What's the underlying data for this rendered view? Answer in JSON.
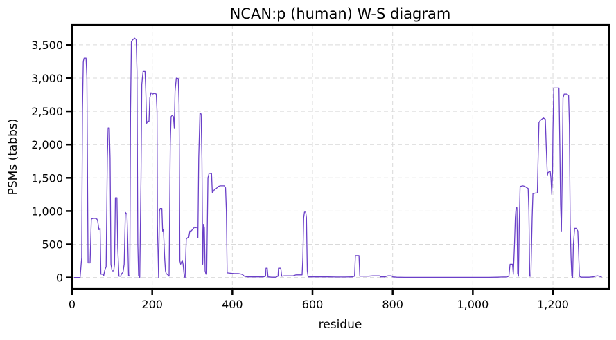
{
  "chart_data": {
    "type": "line",
    "title": "NCAN:p (human) W-S diagram",
    "xlabel": "residue",
    "ylabel": "PSMs (tabbs)",
    "xlim": [
      0,
      1340
    ],
    "ylim": [
      -170,
      3800
    ],
    "xticks": [
      0,
      200,
      400,
      600,
      800,
      1000,
      1200
    ],
    "xtick_labels": [
      "0",
      "200",
      "400",
      "600",
      "800",
      "1,000",
      "1,200"
    ],
    "yticks": [
      0,
      500,
      1000,
      1500,
      2000,
      2500,
      3000,
      3500
    ],
    "ytick_labels": [
      "0",
      "500",
      "1,000",
      "1,500",
      "2,000",
      "2,500",
      "3,000",
      "3,500"
    ],
    "grid": true,
    "series": [
      {
        "color": "#6a3fc8",
        "points": [
          [
            5,
            0
          ],
          [
            20,
            0
          ],
          [
            24,
            300
          ],
          [
            26,
            2500
          ],
          [
            28,
            3250
          ],
          [
            30,
            3300
          ],
          [
            35,
            3300
          ],
          [
            37,
            3000
          ],
          [
            40,
            220
          ],
          [
            45,
            220
          ],
          [
            48,
            880
          ],
          [
            52,
            890
          ],
          [
            58,
            890
          ],
          [
            62,
            880
          ],
          [
            64,
            850
          ],
          [
            67,
            720
          ],
          [
            70,
            740
          ],
          [
            72,
            50
          ],
          [
            76,
            50
          ],
          [
            79,
            30
          ],
          [
            82,
            120
          ],
          [
            85,
            160
          ],
          [
            88,
            1800
          ],
          [
            90,
            2250
          ],
          [
            93,
            2250
          ],
          [
            95,
            1800
          ],
          [
            97,
            200
          ],
          [
            100,
            100
          ],
          [
            104,
            100
          ],
          [
            106,
            200
          ],
          [
            108,
            1200
          ],
          [
            112,
            1200
          ],
          [
            114,
            450
          ],
          [
            117,
            20
          ],
          [
            121,
            20
          ],
          [
            124,
            60
          ],
          [
            127,
            80
          ],
          [
            130,
            200
          ],
          [
            133,
            980
          ],
          [
            137,
            950
          ],
          [
            139,
            550
          ],
          [
            141,
            30
          ],
          [
            144,
            20
          ],
          [
            146,
            2500
          ],
          [
            148,
            3550
          ],
          [
            152,
            3580
          ],
          [
            156,
            3600
          ],
          [
            160,
            3580
          ],
          [
            162,
            3100
          ],
          [
            164,
            500
          ],
          [
            166,
            30
          ],
          [
            169,
            0
          ],
          [
            172,
            1500
          ],
          [
            174,
            2900
          ],
          [
            177,
            3100
          ],
          [
            182,
            3100
          ],
          [
            184,
            2800
          ],
          [
            186,
            2320
          ],
          [
            189,
            2350
          ],
          [
            192,
            2350
          ],
          [
            194,
            2700
          ],
          [
            197,
            2780
          ],
          [
            201,
            2760
          ],
          [
            205,
            2770
          ],
          [
            210,
            2760
          ],
          [
            212,
            2500
          ],
          [
            213,
            800
          ],
          [
            215,
            300
          ],
          [
            216,
            0
          ],
          [
            218,
            1000
          ],
          [
            220,
            1040
          ],
          [
            224,
            1040
          ],
          [
            226,
            700
          ],
          [
            228,
            720
          ],
          [
            231,
            300
          ],
          [
            233,
            100
          ],
          [
            235,
            60
          ],
          [
            239,
            40
          ],
          [
            242,
            20
          ],
          [
            243,
            600
          ],
          [
            245,
            2000
          ],
          [
            247,
            2420
          ],
          [
            250,
            2440
          ],
          [
            253,
            2420
          ],
          [
            255,
            2250
          ],
          [
            257,
            2800
          ],
          [
            260,
            3000
          ],
          [
            265,
            2990
          ],
          [
            267,
            2600
          ],
          [
            269,
            250
          ],
          [
            271,
            200
          ],
          [
            275,
            260
          ],
          [
            277,
            200
          ],
          [
            280,
            20
          ],
          [
            282,
            0
          ],
          [
            285,
            580
          ],
          [
            288,
            600
          ],
          [
            291,
            600
          ],
          [
            294,
            700
          ],
          [
            297,
            700
          ],
          [
            300,
            720
          ],
          [
            303,
            740
          ],
          [
            306,
            760
          ],
          [
            309,
            750
          ],
          [
            312,
            760
          ],
          [
            314,
            600
          ],
          [
            316,
            1800
          ],
          [
            319,
            2470
          ],
          [
            322,
            2460
          ],
          [
            324,
            1800
          ],
          [
            326,
            200
          ],
          [
            328,
            800
          ],
          [
            330,
            750
          ],
          [
            332,
            100
          ],
          [
            334,
            50
          ],
          [
            336,
            50
          ],
          [
            339,
            1500
          ],
          [
            342,
            1570
          ],
          [
            348,
            1560
          ],
          [
            350,
            1280
          ],
          [
            353,
            1300
          ],
          [
            356,
            1330
          ],
          [
            360,
            1340
          ],
          [
            365,
            1370
          ],
          [
            370,
            1380
          ],
          [
            380,
            1380
          ],
          [
            383,
            1350
          ],
          [
            385,
            1000
          ],
          [
            387,
            70
          ],
          [
            395,
            65
          ],
          [
            405,
            60
          ],
          [
            415,
            60
          ],
          [
            420,
            55
          ],
          [
            425,
            45
          ],
          [
            430,
            20
          ],
          [
            438,
            10
          ],
          [
            448,
            10
          ],
          [
            458,
            10
          ],
          [
            468,
            10
          ],
          [
            478,
            10
          ],
          [
            483,
            20
          ],
          [
            484,
            140
          ],
          [
            487,
            140
          ],
          [
            489,
            10
          ],
          [
            498,
            5
          ],
          [
            508,
            5
          ],
          [
            514,
            20
          ],
          [
            515,
            140
          ],
          [
            518,
            140
          ],
          [
            521,
            140
          ],
          [
            523,
            20
          ],
          [
            530,
            25
          ],
          [
            541,
            25
          ],
          [
            551,
            25
          ],
          [
            559,
            40
          ],
          [
            566,
            40
          ],
          [
            574,
            40
          ],
          [
            576,
            300
          ],
          [
            578,
            900
          ],
          [
            580,
            985
          ],
          [
            583,
            985
          ],
          [
            585,
            900
          ],
          [
            587,
            100
          ],
          [
            589,
            10
          ],
          [
            600,
            10
          ],
          [
            620,
            10
          ],
          [
            640,
            10
          ],
          [
            660,
            8
          ],
          [
            680,
            8
          ],
          [
            700,
            10
          ],
          [
            705,
            20
          ],
          [
            707,
            330
          ],
          [
            712,
            330
          ],
          [
            716,
            330
          ],
          [
            718,
            20
          ],
          [
            725,
            20
          ],
          [
            740,
            20
          ],
          [
            750,
            25
          ],
          [
            756,
            25
          ],
          [
            767,
            25
          ],
          [
            770,
            10
          ],
          [
            780,
            10
          ],
          [
            788,
            25
          ],
          [
            797,
            25
          ],
          [
            800,
            10
          ],
          [
            810,
            5
          ],
          [
            830,
            3
          ],
          [
            860,
            3
          ],
          [
            890,
            3
          ],
          [
            920,
            3
          ],
          [
            950,
            3
          ],
          [
            980,
            3
          ],
          [
            1010,
            3
          ],
          [
            1040,
            3
          ],
          [
            1060,
            5
          ],
          [
            1075,
            8
          ],
          [
            1085,
            8
          ],
          [
            1090,
            20
          ],
          [
            1093,
            200
          ],
          [
            1096,
            200
          ],
          [
            1099,
            200
          ],
          [
            1101,
            50
          ],
          [
            1104,
            500
          ],
          [
            1106,
            900
          ],
          [
            1108,
            1050
          ],
          [
            1110,
            1050
          ],
          [
            1112,
            60
          ],
          [
            1114,
            20
          ],
          [
            1116,
            800
          ],
          [
            1118,
            1370
          ],
          [
            1125,
            1380
          ],
          [
            1130,
            1370
          ],
          [
            1135,
            1350
          ],
          [
            1138,
            1340
          ],
          [
            1140,
            1000
          ],
          [
            1142,
            20
          ],
          [
            1145,
            20
          ],
          [
            1148,
            900
          ],
          [
            1150,
            1260
          ],
          [
            1156,
            1270
          ],
          [
            1161,
            1270
          ],
          [
            1163,
            1800
          ],
          [
            1165,
            2330
          ],
          [
            1168,
            2360
          ],
          [
            1172,
            2380
          ],
          [
            1176,
            2400
          ],
          [
            1181,
            2380
          ],
          [
            1183,
            2000
          ],
          [
            1186,
            1540
          ],
          [
            1188,
            1580
          ],
          [
            1193,
            1600
          ],
          [
            1195,
            1500
          ],
          [
            1197,
            1250
          ],
          [
            1199,
            1600
          ],
          [
            1200,
            2200
          ],
          [
            1202,
            2850
          ],
          [
            1206,
            2850
          ],
          [
            1212,
            2850
          ],
          [
            1215,
            2850
          ],
          [
            1217,
            2000
          ],
          [
            1219,
            1100
          ],
          [
            1221,
            700
          ],
          [
            1223,
            1500
          ],
          [
            1225,
            2700
          ],
          [
            1228,
            2760
          ],
          [
            1234,
            2760
          ],
          [
            1239,
            2740
          ],
          [
            1241,
            2300
          ],
          [
            1243,
            800
          ],
          [
            1245,
            300
          ],
          [
            1247,
            20
          ],
          [
            1249,
            0
          ],
          [
            1251,
            500
          ],
          [
            1254,
            740
          ],
          [
            1258,
            740
          ],
          [
            1262,
            700
          ],
          [
            1264,
            400
          ],
          [
            1266,
            20
          ],
          [
            1270,
            5
          ],
          [
            1280,
            5
          ],
          [
            1290,
            5
          ],
          [
            1300,
            10
          ],
          [
            1305,
            20
          ],
          [
            1312,
            25
          ],
          [
            1318,
            15
          ],
          [
            1322,
            5
          ]
        ]
      }
    ]
  }
}
